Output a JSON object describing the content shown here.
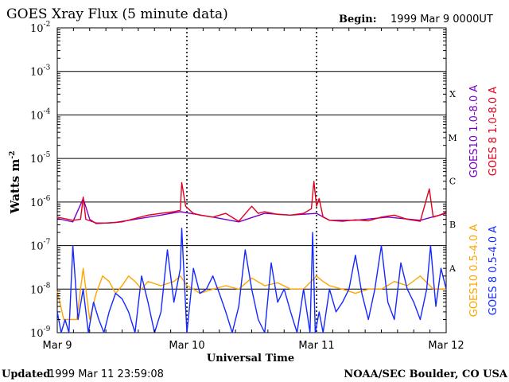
{
  "chart_data": {
    "type": "line",
    "title": "GOES Xray Flux (5 minute data)",
    "begin_label": "Begin:",
    "begin_value": "1999 Mar 9 0000UT",
    "ylabel": "Watts m",
    "ylabel_sup": "-2",
    "xlabel": "Universal Time",
    "y_scale": "log",
    "ylim": [
      1e-09,
      0.01
    ],
    "y_tick_exponents": [
      "-2",
      "-3",
      "-4",
      "-5",
      "-6",
      "-7",
      "-8",
      "-9"
    ],
    "y_tick_base": "10",
    "x_ticks": [
      "Mar 9",
      "Mar 10",
      "Mar 11",
      "Mar 12"
    ],
    "xlim_days": [
      9,
      12
    ],
    "flare_classes": [
      {
        "label": "X",
        "level": 0.0001
      },
      {
        "label": "M",
        "level": 1e-05
      },
      {
        "label": "C",
        "level": 1e-06
      },
      {
        "label": "B",
        "level": 1e-07
      },
      {
        "label": "A",
        "level": 1e-08
      }
    ],
    "grid": "horizontal lines at each decade; dashed vertical lines at day boundaries",
    "series": [
      {
        "name": "GOES10 1.0-8.0 A",
        "color": "#7a00c8",
        "x": [
          9.0,
          9.12,
          9.2,
          9.25,
          9.3,
          9.45,
          9.6,
          9.8,
          9.95,
          10.2,
          10.4,
          10.6,
          10.8,
          11.0,
          11.1,
          11.3,
          11.55,
          11.8,
          12.0
        ],
        "y": [
          4.2e-07,
          3.5e-07,
          1.2e-06,
          4e-07,
          3.2e-07,
          3.4e-07,
          4e-07,
          5e-07,
          6e-07,
          4.5e-07,
          3.5e-07,
          5.5e-07,
          5e-07,
          5.5e-07,
          3.8e-07,
          3.8e-07,
          4.5e-07,
          3.8e-07,
          5.5e-07
        ]
      },
      {
        "name": "GOES 8 1.0-8.0 A",
        "color": "#e0001c",
        "x": [
          9.0,
          9.05,
          9.12,
          9.18,
          9.2,
          9.22,
          9.3,
          9.4,
          9.5,
          9.6,
          9.7,
          9.8,
          9.9,
          9.95,
          9.96,
          9.99,
          10.05,
          10.1,
          10.2,
          10.3,
          10.4,
          10.5,
          10.55,
          10.6,
          10.7,
          10.8,
          10.9,
          10.96,
          10.98,
          11.0,
          11.02,
          11.05,
          11.1,
          11.2,
          11.3,
          11.4,
          11.5,
          11.6,
          11.7,
          11.8,
          11.87,
          11.9,
          11.95,
          12.0
        ],
        "y": [
          4.5e-07,
          4.2e-07,
          3.8e-07,
          4e-07,
          1.3e-06,
          4e-07,
          3.3e-07,
          3.3e-07,
          3.5e-07,
          4.2e-07,
          5e-07,
          5.5e-07,
          6e-07,
          6.5e-07,
          2.8e-06,
          8e-07,
          5.5e-07,
          5e-07,
          4.5e-07,
          5.5e-07,
          3.6e-07,
          8e-07,
          5.5e-07,
          6e-07,
          5.2e-07,
          5e-07,
          5.5e-07,
          7e-07,
          3e-06,
          8e-07,
          1.2e-06,
          4.5e-07,
          3.8e-07,
          3.6e-07,
          3.9e-07,
          3.7e-07,
          4.5e-07,
          5e-07,
          4e-07,
          3.6e-07,
          2e-06,
          4.5e-07,
          5e-07,
          5.8e-07
        ]
      },
      {
        "name": "GOES10 0.5-4.0 A",
        "color": "#ffa500",
        "x": [
          9.0,
          9.05,
          9.1,
          9.15,
          9.2,
          9.25,
          9.3,
          9.35,
          9.4,
          9.45,
          9.5,
          9.55,
          9.6,
          9.65,
          9.7,
          9.8,
          9.9,
          9.95,
          10.0,
          10.05,
          10.1,
          10.2,
          10.3,
          10.4,
          10.5,
          10.6,
          10.7,
          10.8,
          10.9,
          11.0,
          11.05,
          11.1,
          11.2,
          11.3,
          11.4,
          11.5,
          11.6,
          11.7,
          11.8,
          11.9,
          12.0
        ],
        "y": [
          9e-09,
          2e-09,
          2e-09,
          2e-09,
          3e-08,
          2e-09,
          8e-09,
          2e-08,
          1.5e-08,
          8e-09,
          1.2e-08,
          2e-08,
          1.5e-08,
          1e-08,
          1.5e-08,
          1.2e-08,
          1.5e-08,
          2e-08,
          1.2e-08,
          1e-08,
          8e-09,
          1e-08,
          1.2e-08,
          1e-08,
          1.8e-08,
          1.2e-08,
          1.4e-08,
          1e-08,
          1e-08,
          2e-08,
          1.5e-08,
          1.2e-08,
          1e-08,
          8e-09,
          1e-08,
          1e-08,
          1.5e-08,
          1.2e-08,
          2e-08,
          1e-08,
          1e-08
        ]
      },
      {
        "name": "GOES 8 0.5-4.0 A",
        "color": "#1428ff",
        "x": [
          9.0,
          9.03,
          9.06,
          9.09,
          9.12,
          9.16,
          9.2,
          9.24,
          9.28,
          9.32,
          9.36,
          9.4,
          9.45,
          9.5,
          9.55,
          9.6,
          9.65,
          9.7,
          9.75,
          9.8,
          9.85,
          9.9,
          9.95,
          9.96,
          10.0,
          10.05,
          10.1,
          10.15,
          10.2,
          10.25,
          10.3,
          10.35,
          10.4,
          10.45,
          10.5,
          10.55,
          10.6,
          10.65,
          10.7,
          10.75,
          10.8,
          10.85,
          10.9,
          10.95,
          10.97,
          10.99,
          11.02,
          11.05,
          11.1,
          11.15,
          11.2,
          11.25,
          11.3,
          11.35,
          11.4,
          11.45,
          11.5,
          11.55,
          11.6,
          11.65,
          11.7,
          11.75,
          11.8,
          11.85,
          11.88,
          11.92,
          11.96,
          12.0
        ],
        "y": [
          3e-09,
          1e-09,
          2e-09,
          1e-09,
          1e-07,
          2e-09,
          1e-08,
          1e-09,
          5e-09,
          2e-09,
          1e-09,
          3e-09,
          8e-09,
          6e-09,
          3e-09,
          1e-09,
          2e-08,
          5e-09,
          1e-09,
          3e-09,
          8e-08,
          5e-09,
          3e-08,
          2.5e-07,
          1e-09,
          3e-08,
          8e-09,
          1e-08,
          2e-08,
          8e-09,
          3e-09,
          1e-09,
          4e-09,
          8e-08,
          1e-08,
          2e-09,
          1e-09,
          4e-08,
          5e-09,
          1e-08,
          3e-09,
          1e-09,
          1e-08,
          1e-09,
          2e-07,
          1e-09,
          3e-09,
          1e-09,
          1e-08,
          3e-09,
          5e-09,
          1e-08,
          6e-08,
          8e-09,
          2e-09,
          1e-08,
          1e-07,
          5e-09,
          2e-09,
          4e-08,
          1e-08,
          5e-09,
          2e-09,
          1e-08,
          1e-07,
          4e-09,
          3e-08,
          1e-08
        ]
      }
    ]
  },
  "footer": {
    "updated_label": "Updated",
    "updated_value": "1999 Mar 11 23:59:08",
    "source": "NOAA/SEC Boulder, CO USA"
  }
}
